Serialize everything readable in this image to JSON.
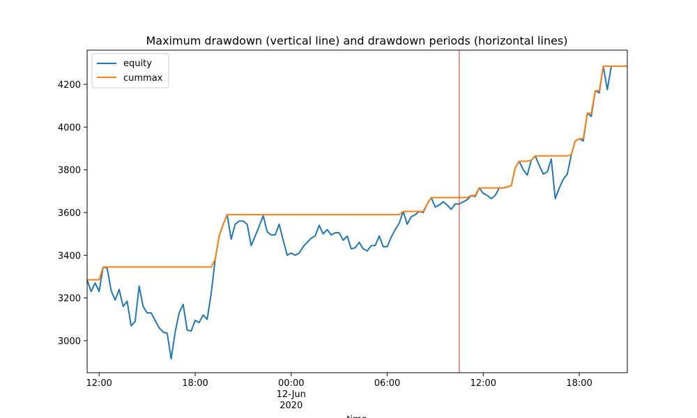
{
  "chart_data": {
    "type": "line",
    "title": "Maximum drawdown (vertical line) and drawdown periods (horizontal lines)",
    "xlabel": "time",
    "ylabel": "",
    "xlim": [
      "2020-06-11 11:15",
      "2020-06-12 21:00"
    ],
    "ylim": [
      2850,
      4360
    ],
    "grid": false,
    "legend_position": "upper-left",
    "x_ticks": [
      {
        "x": "2020-06-11 12:00",
        "label": "12:00"
      },
      {
        "x": "2020-06-11 18:00",
        "label": "18:00"
      },
      {
        "x": "2020-06-12 00:00",
        "label": "00:00",
        "label2": "12-Jun",
        "label3": "2020"
      },
      {
        "x": "2020-06-12 06:00",
        "label": "06:00"
      },
      {
        "x": "2020-06-12 12:00",
        "label": "12:00"
      },
      {
        "x": "2020-06-12 18:00",
        "label": "18:00"
      }
    ],
    "y_ticks": [
      3000,
      3200,
      3400,
      3600,
      3800,
      4000,
      4200
    ],
    "max_drawdown_line": {
      "x": "2020-06-12 10:30",
      "color": "#e8463c"
    },
    "series": [
      {
        "name": "equity",
        "color": "#1f77b4",
        "points": [
          [
            "2020-06-11 11:15",
            3285
          ],
          [
            "2020-06-11 11:30",
            3230
          ],
          [
            "2020-06-11 11:45",
            3270
          ],
          [
            "2020-06-11 12:00",
            3230
          ],
          [
            "2020-06-11 12:15",
            3345
          ],
          [
            "2020-06-11 12:30",
            3340
          ],
          [
            "2020-06-11 12:45",
            3235
          ],
          [
            "2020-06-11 13:00",
            3190
          ],
          [
            "2020-06-11 13:15",
            3240
          ],
          [
            "2020-06-11 13:30",
            3160
          ],
          [
            "2020-06-11 13:45",
            3185
          ],
          [
            "2020-06-11 14:00",
            3070
          ],
          [
            "2020-06-11 14:15",
            3090
          ],
          [
            "2020-06-11 14:30",
            3255
          ],
          [
            "2020-06-11 14:45",
            3160
          ],
          [
            "2020-06-11 15:00",
            3130
          ],
          [
            "2020-06-11 15:15",
            3130
          ],
          [
            "2020-06-11 15:30",
            3095
          ],
          [
            "2020-06-11 15:45",
            3060
          ],
          [
            "2020-06-11 16:00",
            3040
          ],
          [
            "2020-06-11 16:15",
            3035
          ],
          [
            "2020-06-11 16:30",
            2915
          ],
          [
            "2020-06-11 16:45",
            3040
          ],
          [
            "2020-06-11 17:00",
            3130
          ],
          [
            "2020-06-11 17:15",
            3170
          ],
          [
            "2020-06-11 17:30",
            3050
          ],
          [
            "2020-06-11 17:45",
            3045
          ],
          [
            "2020-06-11 18:00",
            3095
          ],
          [
            "2020-06-11 18:15",
            3085
          ],
          [
            "2020-06-11 18:30",
            3120
          ],
          [
            "2020-06-11 18:45",
            3100
          ],
          [
            "2020-06-11 19:00",
            3220
          ],
          [
            "2020-06-11 19:15",
            3380
          ],
          [
            "2020-06-11 19:30",
            3490
          ],
          [
            "2020-06-11 19:45",
            3545
          ],
          [
            "2020-06-11 20:00",
            3590
          ],
          [
            "2020-06-11 20:15",
            3475
          ],
          [
            "2020-06-11 20:30",
            3545
          ],
          [
            "2020-06-11 20:45",
            3560
          ],
          [
            "2020-06-11 21:00",
            3560
          ],
          [
            "2020-06-11 21:15",
            3545
          ],
          [
            "2020-06-11 21:30",
            3445
          ],
          [
            "2020-06-11 21:45",
            3490
          ],
          [
            "2020-06-11 22:00",
            3535
          ],
          [
            "2020-06-11 22:15",
            3585
          ],
          [
            "2020-06-11 22:30",
            3510
          ],
          [
            "2020-06-11 22:45",
            3495
          ],
          [
            "2020-06-11 23:00",
            3495
          ],
          [
            "2020-06-11 23:15",
            3545
          ],
          [
            "2020-06-11 23:30",
            3470
          ],
          [
            "2020-06-11 23:45",
            3400
          ],
          [
            "2020-06-12 00:00",
            3410
          ],
          [
            "2020-06-12 00:15",
            3400
          ],
          [
            "2020-06-12 00:30",
            3410
          ],
          [
            "2020-06-12 00:45",
            3440
          ],
          [
            "2020-06-12 01:00",
            3460
          ],
          [
            "2020-06-12 01:15",
            3480
          ],
          [
            "2020-06-12 01:30",
            3490
          ],
          [
            "2020-06-12 01:45",
            3540
          ],
          [
            "2020-06-12 02:00",
            3500
          ],
          [
            "2020-06-12 02:15",
            3520
          ],
          [
            "2020-06-12 02:30",
            3495
          ],
          [
            "2020-06-12 02:45",
            3505
          ],
          [
            "2020-06-12 03:00",
            3505
          ],
          [
            "2020-06-12 03:15",
            3470
          ],
          [
            "2020-06-12 03:30",
            3490
          ],
          [
            "2020-06-12 03:45",
            3430
          ],
          [
            "2020-06-12 04:00",
            3435
          ],
          [
            "2020-06-12 04:15",
            3460
          ],
          [
            "2020-06-12 04:30",
            3430
          ],
          [
            "2020-06-12 04:45",
            3420
          ],
          [
            "2020-06-12 05:00",
            3445
          ],
          [
            "2020-06-12 05:15",
            3445
          ],
          [
            "2020-06-12 05:30",
            3490
          ],
          [
            "2020-06-12 05:45",
            3440
          ],
          [
            "2020-06-12 06:00",
            3440
          ],
          [
            "2020-06-12 06:15",
            3485
          ],
          [
            "2020-06-12 06:30",
            3520
          ],
          [
            "2020-06-12 06:45",
            3550
          ],
          [
            "2020-06-12 07:00",
            3605
          ],
          [
            "2020-06-12 07:15",
            3545
          ],
          [
            "2020-06-12 07:30",
            3580
          ],
          [
            "2020-06-12 07:45",
            3590
          ],
          [
            "2020-06-12 08:00",
            3605
          ],
          [
            "2020-06-12 08:15",
            3600
          ],
          [
            "2020-06-12 08:30",
            3640
          ],
          [
            "2020-06-12 08:45",
            3670
          ],
          [
            "2020-06-12 09:00",
            3625
          ],
          [
            "2020-06-12 09:15",
            3635
          ],
          [
            "2020-06-12 09:30",
            3650
          ],
          [
            "2020-06-12 09:45",
            3635
          ],
          [
            "2020-06-12 10:00",
            3615
          ],
          [
            "2020-06-12 10:15",
            3640
          ],
          [
            "2020-06-12 10:30",
            3640
          ],
          [
            "2020-06-12 10:45",
            3650
          ],
          [
            "2020-06-12 11:00",
            3660
          ],
          [
            "2020-06-12 11:15",
            3680
          ],
          [
            "2020-06-12 11:30",
            3675
          ],
          [
            "2020-06-12 11:45",
            3715
          ],
          [
            "2020-06-12 12:00",
            3690
          ],
          [
            "2020-06-12 12:15",
            3680
          ],
          [
            "2020-06-12 12:30",
            3665
          ],
          [
            "2020-06-12 12:45",
            3680
          ],
          [
            "2020-06-12 13:00",
            3715
          ],
          [
            "2020-06-12 13:15",
            3715
          ],
          [
            "2020-06-12 13:30",
            3720
          ],
          [
            "2020-06-12 13:45",
            3725
          ],
          [
            "2020-06-12 14:00",
            3810
          ],
          [
            "2020-06-12 14:15",
            3840
          ],
          [
            "2020-06-12 14:30",
            3800
          ],
          [
            "2020-06-12 14:45",
            3775
          ],
          [
            "2020-06-12 15:00",
            3845
          ],
          [
            "2020-06-12 15:15",
            3865
          ],
          [
            "2020-06-12 15:30",
            3820
          ],
          [
            "2020-06-12 15:45",
            3780
          ],
          [
            "2020-06-12 16:00",
            3790
          ],
          [
            "2020-06-12 16:15",
            3850
          ],
          [
            "2020-06-12 16:30",
            3665
          ],
          [
            "2020-06-12 16:45",
            3715
          ],
          [
            "2020-06-12 17:00",
            3755
          ],
          [
            "2020-06-12 17:15",
            3780
          ],
          [
            "2020-06-12 17:30",
            3870
          ],
          [
            "2020-06-12 17:45",
            3935
          ],
          [
            "2020-06-12 18:00",
            3945
          ],
          [
            "2020-06-12 18:15",
            3935
          ],
          [
            "2020-06-12 18:30",
            4065
          ],
          [
            "2020-06-12 18:45",
            4050
          ],
          [
            "2020-06-12 19:00",
            4170
          ],
          [
            "2020-06-12 19:15",
            4160
          ],
          [
            "2020-06-12 19:30",
            4285
          ],
          [
            "2020-06-12 19:45",
            4175
          ],
          [
            "2020-06-12 20:00",
            4285
          ]
        ]
      },
      {
        "name": "cummax",
        "color": "#ff7f0e",
        "points": []
      }
    ]
  }
}
